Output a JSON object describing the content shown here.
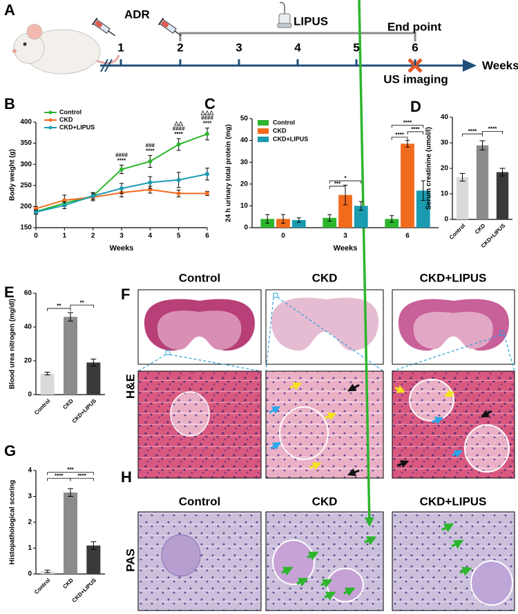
{
  "timeline": {
    "panel": "A",
    "treatment": "ADR",
    "therapy": "LIPUS",
    "end": "End point",
    "weeks": [
      "1",
      "2",
      "3",
      "4",
      "5",
      "6"
    ],
    "axis_label": "Weeks",
    "imaging": "US imaging"
  },
  "chart_data": [
    {
      "type": "line",
      "panel": "B",
      "y_label": "Body weight (g)",
      "x_label": "Weeks",
      "x": [
        0,
        1,
        2,
        3,
        4,
        5,
        6
      ],
      "xlim": [
        0,
        6
      ],
      "xticks": [
        0,
        1,
        2,
        3,
        4,
        5,
        6
      ],
      "ylim": [
        150,
        400
      ],
      "yticks": [
        150,
        200,
        250,
        300,
        350,
        400
      ],
      "series": [
        {
          "name": "Control",
          "color": "#2db52d",
          "values": [
            188,
            208,
            225,
            288,
            307,
            347,
            372
          ],
          "errors": [
            5,
            8,
            8,
            10,
            14,
            14,
            14
          ]
        },
        {
          "name": "CKD",
          "color": "#f26b1d",
          "values": [
            195,
            215,
            222,
            233,
            240,
            231,
            231
          ],
          "errors": [
            5,
            12,
            8,
            10,
            8,
            8,
            5
          ]
        },
        {
          "name": "CKD+LIPUS",
          "color": "#1a9bb0",
          "values": [
            187,
            203,
            225,
            243,
            257,
            263,
            277
          ],
          "errors": [
            5,
            8,
            8,
            12,
            14,
            18,
            14
          ]
        }
      ],
      "annotations": [
        {
          "x": 3,
          "text": [
            "####",
            "****"
          ]
        },
        {
          "x": 4,
          "text": [
            "###",
            "****"
          ]
        },
        {
          "x": 5,
          "text": [
            "△△",
            "####",
            "****"
          ]
        },
        {
          "x": 6,
          "text": [
            "△△△",
            "####",
            "****"
          ]
        }
      ]
    },
    {
      "type": "grouped_bar",
      "panel": "C",
      "y_label": "24 h urinary total protein (mg)",
      "x_label": "Weeks",
      "categories": [
        "0",
        "3",
        "6"
      ],
      "ylim": [
        0,
        50
      ],
      "yticks": [
        0,
        10,
        20,
        30,
        40,
        50
      ],
      "series": [
        {
          "name": "Control",
          "color": "#2db52d",
          "values": [
            4,
            4.5,
            4
          ],
          "errors": [
            2,
            1.5,
            1.5
          ]
        },
        {
          "name": "CKD",
          "color": "#f26b1d",
          "values": [
            4,
            15,
            38.5
          ],
          "errors": [
            2,
            4.5,
            1.5
          ]
        },
        {
          "name": "CKD+LIPUS",
          "color": "#1a9bb0",
          "values": [
            3.5,
            10,
            17
          ],
          "errors": [
            1,
            2,
            4.5
          ]
        }
      ],
      "brackets": [
        {
          "category": 1,
          "from": 0,
          "to": 1,
          "y": 19,
          "label": "***"
        },
        {
          "category": 1,
          "from": 0,
          "to": 2,
          "y": 21.5,
          "label": "*"
        },
        {
          "category": 2,
          "from": 0,
          "to": 1,
          "y": 41.5,
          "label": "****"
        },
        {
          "category": 2,
          "from": 1,
          "to": 2,
          "y": 44,
          "label": "****"
        },
        {
          "category": 2,
          "from": 0,
          "to": 2,
          "y": 47,
          "label": "****"
        }
      ]
    },
    {
      "type": "bar",
      "panel": "D",
      "y_label": "Serum creatinine (umol/l)",
      "categories": [
        "Control",
        "CKD",
        "CKD+LIPUS"
      ],
      "values": [
        16.5,
        29,
        18.5
      ],
      "errors": [
        1.5,
        1.8,
        1.5
      ],
      "colors": [
        "#d9d9d9",
        "#8c8c8c",
        "#3a3a3a"
      ],
      "ylim": [
        0,
        40
      ],
      "yticks": [
        0,
        10,
        20,
        30,
        40
      ],
      "brackets": [
        {
          "from": 0,
          "to": 1,
          "y": 33.5,
          "label": "****"
        },
        {
          "from": 1,
          "to": 2,
          "y": 34.5,
          "label": "****"
        }
      ]
    },
    {
      "type": "bar",
      "panel": "E",
      "y_label": "Blood urea nitrogen (mg/dl)",
      "categories": [
        "Control",
        "CKD",
        "CKD+LIPUS"
      ],
      "values": [
        12.5,
        46,
        19
      ],
      "errors": [
        0.8,
        2.5,
        2
      ],
      "colors": [
        "#d9d9d9",
        "#8c8c8c",
        "#3a3a3a"
      ],
      "ylim": [
        0,
        60
      ],
      "yticks": [
        0,
        20,
        40,
        60
      ],
      "brackets": [
        {
          "from": 0,
          "to": 1,
          "y": 51,
          "label": "**"
        },
        {
          "from": 1,
          "to": 2,
          "y": 53,
          "label": "**"
        }
      ]
    },
    {
      "type": "bar",
      "panel": "G",
      "y_label": "Histopathological scoring",
      "categories": [
        "Control",
        "CKD",
        "CKD+LIPUS"
      ],
      "values": [
        0.1,
        3.15,
        1.1
      ],
      "errors": [
        0.05,
        0.15,
        0.15
      ],
      "colors": [
        "#d9d9d9",
        "#8c8c8c",
        "#3a3a3a"
      ],
      "ylim": [
        0,
        4
      ],
      "yticks": [
        0,
        1,
        2,
        3,
        4
      ],
      "brackets": [
        {
          "from": 0,
          "to": 1,
          "y": 3.7,
          "label": "****"
        },
        {
          "from": 1,
          "to": 2,
          "y": 3.7,
          "label": "****"
        },
        {
          "from": 0,
          "to": 2,
          "y": 3.93,
          "label": "***"
        }
      ]
    }
  ],
  "histology": {
    "he": {
      "panel": "F",
      "stain": "H&E",
      "groups": [
        "Control",
        "CKD",
        "CKD+LIPUS"
      ]
    },
    "pas": {
      "panel": "H",
      "stain": "PAS",
      "groups": [
        "Control",
        "CKD",
        "CKD+LIPUS"
      ]
    }
  }
}
